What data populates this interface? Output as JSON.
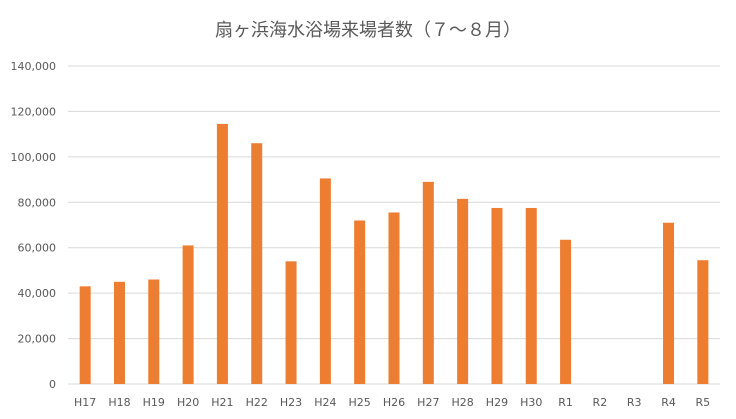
{
  "chart_data": {
    "type": "bar",
    "title": "扇ヶ浜海水浴場来場者数（７～８月）",
    "xlabel": "",
    "ylabel": "",
    "categories": [
      "H17",
      "H18",
      "H19",
      "H20",
      "H21",
      "H22",
      "H23",
      "H24",
      "H25",
      "H26",
      "H27",
      "H28",
      "H29",
      "H30",
      "R1",
      "R2",
      "R3",
      "R4",
      "R5"
    ],
    "values": [
      43000,
      45000,
      46000,
      61000,
      114500,
      106000,
      54000,
      90500,
      72000,
      75500,
      89000,
      81500,
      77500,
      77500,
      63500,
      0,
      0,
      71000,
      54500
    ],
    "ylim": [
      0,
      140000
    ],
    "yticks": [
      0,
      20000,
      40000,
      60000,
      80000,
      100000,
      120000,
      140000
    ],
    "ytick_labels": [
      "0",
      "20,000",
      "40,000",
      "60,000",
      "80,000",
      "100,000",
      "120,000",
      "140,000"
    ],
    "grid": true,
    "bar_color": "#ed7d31",
    "legend": "none"
  }
}
